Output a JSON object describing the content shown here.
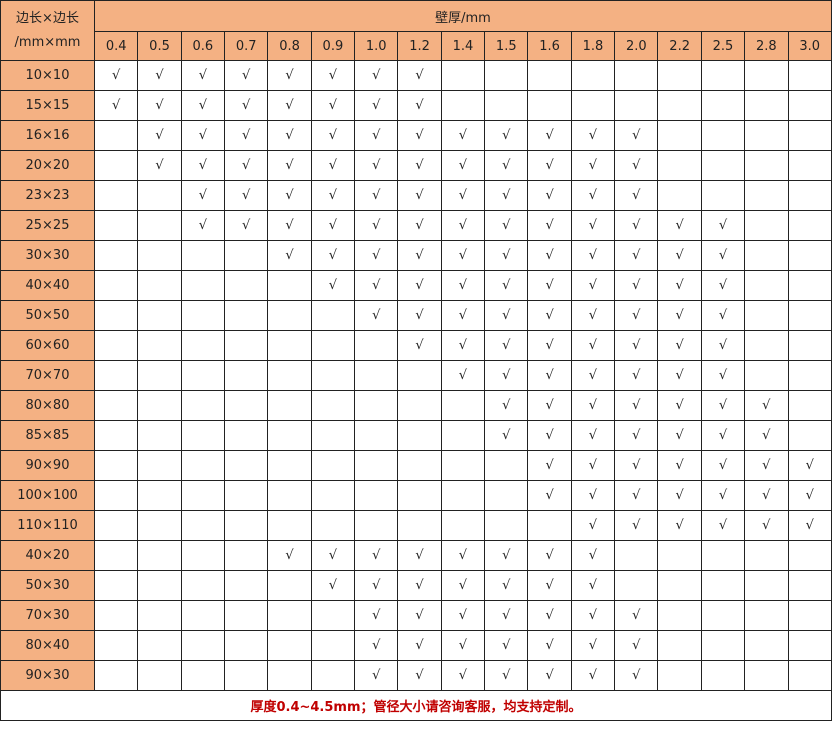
{
  "header": {
    "corner_line1": "边长×边长",
    "corner_line2": "/mm×mm",
    "thickness_title": "壁厚/mm",
    "thickness_columns": [
      "0.4",
      "0.5",
      "0.6",
      "0.7",
      "0.8",
      "0.9",
      "1.0",
      "1.2",
      "1.4",
      "1.5",
      "1.6",
      "1.8",
      "2.0",
      "2.2",
      "2.5",
      "2.8",
      "3.0"
    ]
  },
  "rows": [
    {
      "size": "10×10",
      "cells": [
        "√",
        "√",
        "√",
        "√",
        "√",
        "√",
        "√",
        "√",
        "",
        "",
        "",
        "",
        "",
        "",
        "",
        "",
        ""
      ]
    },
    {
      "size": "15×15",
      "cells": [
        "√",
        "√",
        "√",
        "√",
        "√",
        "√",
        "√",
        "√",
        "",
        "",
        "",
        "",
        "",
        "",
        "",
        "",
        ""
      ]
    },
    {
      "size": "16×16",
      "cells": [
        "",
        "√",
        "√",
        "√",
        "√",
        "√",
        "√",
        "√",
        "√",
        "√",
        "√",
        "√",
        "√",
        "",
        "",
        "",
        ""
      ]
    },
    {
      "size": "20×20",
      "cells": [
        "",
        "√",
        "√",
        "√",
        "√",
        "√",
        "√",
        "√",
        "√",
        "√",
        "√",
        "√",
        "√",
        "",
        "",
        "",
        ""
      ]
    },
    {
      "size": "23×23",
      "cells": [
        "",
        "",
        "√",
        "√",
        "√",
        "√",
        "√",
        "√",
        "√",
        "√",
        "√",
        "√",
        "√",
        "",
        "",
        "",
        ""
      ]
    },
    {
      "size": "25×25",
      "cells": [
        "",
        "",
        "√",
        "√",
        "√",
        "√",
        "√",
        "√",
        "√",
        "√",
        "√",
        "√",
        "√",
        "√",
        "√",
        "",
        ""
      ]
    },
    {
      "size": "30×30",
      "cells": [
        "",
        "",
        "",
        "",
        "√",
        "√",
        "√",
        "√",
        "√",
        "√",
        "√",
        "√",
        "√",
        "√",
        "√",
        "",
        ""
      ]
    },
    {
      "size": "40×40",
      "cells": [
        "",
        "",
        "",
        "",
        "",
        "√",
        "√",
        "√",
        "√",
        "√",
        "√",
        "√",
        "√",
        "√",
        "√",
        "",
        ""
      ]
    },
    {
      "size": "50×50",
      "cells": [
        "",
        "",
        "",
        "",
        "",
        "",
        "√",
        "√",
        "√",
        "√",
        "√",
        "√",
        "√",
        "√",
        "√",
        "",
        ""
      ]
    },
    {
      "size": "60×60",
      "cells": [
        "",
        "",
        "",
        "",
        "",
        "",
        "",
        "√",
        "√",
        "√",
        "√",
        "√",
        "√",
        "√",
        "√",
        "",
        ""
      ]
    },
    {
      "size": "70×70",
      "cells": [
        "",
        "",
        "",
        "",
        "",
        "",
        "",
        "",
        "√",
        "√",
        "√",
        "√",
        "√",
        "√",
        "√",
        "",
        ""
      ]
    },
    {
      "size": "80×80",
      "cells": [
        "",
        "",
        "",
        "",
        "",
        "",
        "",
        "",
        "",
        "√",
        "√",
        "√",
        "√",
        "√",
        "√",
        "√",
        ""
      ]
    },
    {
      "size": "85×85",
      "cells": [
        "",
        "",
        "",
        "",
        "",
        "",
        "",
        "",
        "",
        "√",
        "√",
        "√",
        "√",
        "√",
        "√",
        "√",
        ""
      ]
    },
    {
      "size": "90×90",
      "cells": [
        "",
        "",
        "",
        "",
        "",
        "",
        "",
        "",
        "",
        "",
        "√",
        "√",
        "√",
        "√",
        "√",
        "√",
        "√"
      ]
    },
    {
      "size": "100×100",
      "cells": [
        "",
        "",
        "",
        "",
        "",
        "",
        "",
        "",
        "",
        "",
        "√",
        "√",
        "√",
        "√",
        "√",
        "√",
        "√"
      ]
    },
    {
      "size": "110×110",
      "cells": [
        "",
        "",
        "",
        "",
        "",
        "",
        "",
        "",
        "",
        "",
        "",
        "√",
        "√",
        "√",
        "√",
        "√",
        "√"
      ]
    },
    {
      "size": "40×20",
      "cells": [
        "",
        "",
        "",
        "",
        "√",
        "√",
        "√",
        "√",
        "√",
        "√",
        "√",
        "√",
        "",
        "",
        "",
        "",
        ""
      ]
    },
    {
      "size": "50×30",
      "cells": [
        "",
        "",
        "",
        "",
        "",
        "√",
        "√",
        "√",
        "√",
        "√",
        "√",
        "√",
        "",
        "",
        "",
        "",
        ""
      ]
    },
    {
      "size": "70×30",
      "cells": [
        "",
        "",
        "",
        "",
        "",
        "",
        "√",
        "√",
        "√",
        "√",
        "√",
        "√",
        "√",
        "",
        "",
        "",
        ""
      ]
    },
    {
      "size": "80×40",
      "cells": [
        "",
        "",
        "",
        "",
        "",
        "",
        "√",
        "√",
        "√",
        "√",
        "√",
        "√",
        "√",
        "",
        "",
        "",
        ""
      ]
    },
    {
      "size": "90×30",
      "cells": [
        "",
        "",
        "",
        "",
        "",
        "",
        "√",
        "√",
        "√",
        "√",
        "√",
        "√",
        "√",
        "",
        "",
        "",
        ""
      ]
    }
  ],
  "footer": {
    "note": "厚度0.4~4.5mm；管径大小请咨询客服，均支持定制。"
  },
  "colors": {
    "header_bg": "#F4B183",
    "footer_text": "#C00000"
  }
}
